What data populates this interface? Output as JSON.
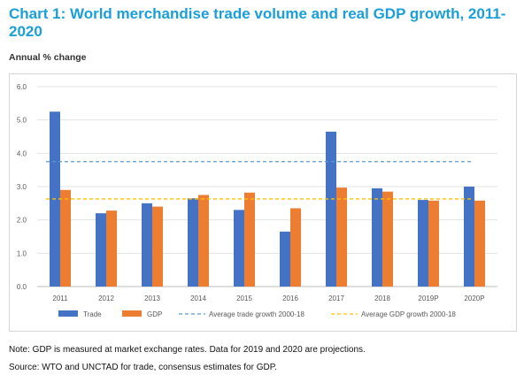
{
  "title": "Chart 1: World merchandise trade volume and real GDP growth, 2011-2020",
  "subtitle": "Annual % change",
  "notes": {
    "note": "Note: GDP is measured at market exchange rates. Data for 2019 and 2020 are projections.",
    "source": "Source: WTO and UNCTAD for trade, consensus estimates for GDP."
  },
  "colors": {
    "trade": "#4472c4",
    "gdp": "#ed7d31",
    "avg_trade": "#5b9bd5",
    "avg_gdp": "#ffc000",
    "title": "#1a9fd9"
  },
  "chart_data": {
    "type": "bar",
    "title": "Chart 1: World merchandise trade volume and real GDP growth, 2011-2020",
    "ylabel": "Annual % change",
    "xlabel": "",
    "categories": [
      "2011",
      "2012",
      "2013",
      "2014",
      "2015",
      "2016",
      "2017",
      "2018",
      "2019P",
      "2020P"
    ],
    "series": [
      {
        "name": "Trade",
        "values": [
          5.25,
          2.2,
          2.5,
          2.65,
          2.3,
          1.65,
          4.65,
          2.95,
          2.6,
          3.0
        ]
      },
      {
        "name": "GDP",
        "values": [
          2.9,
          2.28,
          2.4,
          2.75,
          2.82,
          2.35,
          2.97,
          2.85,
          2.58,
          2.58
        ]
      }
    ],
    "reference_lines": [
      {
        "name": "Average trade growth 2000-18",
        "value": 3.75,
        "style": "dashed"
      },
      {
        "name": "Average GDP growth 2000-18",
        "value": 2.63,
        "style": "dashed"
      }
    ],
    "ylim": [
      0,
      6
    ],
    "yticks": [
      "0.0",
      "1.0",
      "2.0",
      "3.0",
      "4.0",
      "5.0",
      "6.0"
    ],
    "grid": true,
    "legend": "bottom"
  }
}
